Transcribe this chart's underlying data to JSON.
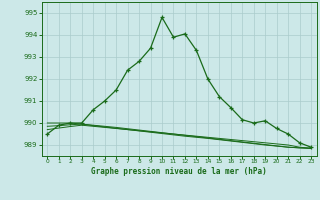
{
  "xlabel": "Graphe pression niveau de la mer (hPa)",
  "bg_color": "#cce8e8",
  "grid_color": "#aacccc",
  "line_color": "#1a6b1a",
  "ylim": [
    988.5,
    995.5
  ],
  "xlim": [
    -0.5,
    23.5
  ],
  "yticks": [
    989,
    990,
    991,
    992,
    993,
    994,
    995
  ],
  "xticks": [
    0,
    1,
    2,
    3,
    4,
    5,
    6,
    7,
    8,
    9,
    10,
    11,
    12,
    13,
    14,
    15,
    16,
    17,
    18,
    19,
    20,
    21,
    22,
    23
  ],
  "hours": [
    0,
    1,
    2,
    3,
    4,
    5,
    6,
    7,
    8,
    9,
    10,
    11,
    12,
    13,
    14,
    15,
    16,
    17,
    18,
    19,
    20,
    21,
    22,
    23
  ],
  "pressure_main": [
    989.5,
    989.9,
    990.0,
    990.0,
    990.6,
    991.0,
    991.5,
    992.4,
    992.8,
    993.4,
    994.8,
    993.9,
    994.05,
    993.3,
    992.0,
    991.2,
    990.7,
    990.15,
    990.0,
    990.1,
    989.75,
    989.5,
    989.1,
    988.9
  ],
  "pressure_flat1": [
    990.0,
    990.0,
    990.0,
    989.95,
    989.88,
    989.82,
    989.76,
    989.7,
    989.64,
    989.58,
    989.52,
    989.46,
    989.4,
    989.35,
    989.3,
    989.24,
    989.18,
    989.12,
    989.06,
    989.0,
    988.95,
    988.9,
    988.87,
    988.85
  ],
  "pressure_flat2": [
    989.85,
    989.88,
    989.92,
    989.95,
    989.9,
    989.85,
    989.8,
    989.74,
    989.68,
    989.62,
    989.56,
    989.5,
    989.44,
    989.38,
    989.32,
    989.26,
    989.2,
    989.14,
    989.08,
    989.02,
    988.96,
    988.9,
    988.87,
    988.85
  ],
  "pressure_flat3": [
    989.7,
    989.77,
    989.84,
    989.9,
    989.85,
    989.8,
    989.75,
    989.7,
    989.65,
    989.6,
    989.55,
    989.5,
    989.45,
    989.4,
    989.35,
    989.3,
    989.25,
    989.2,
    989.15,
    989.1,
    989.05,
    989.0,
    988.9,
    988.85
  ]
}
